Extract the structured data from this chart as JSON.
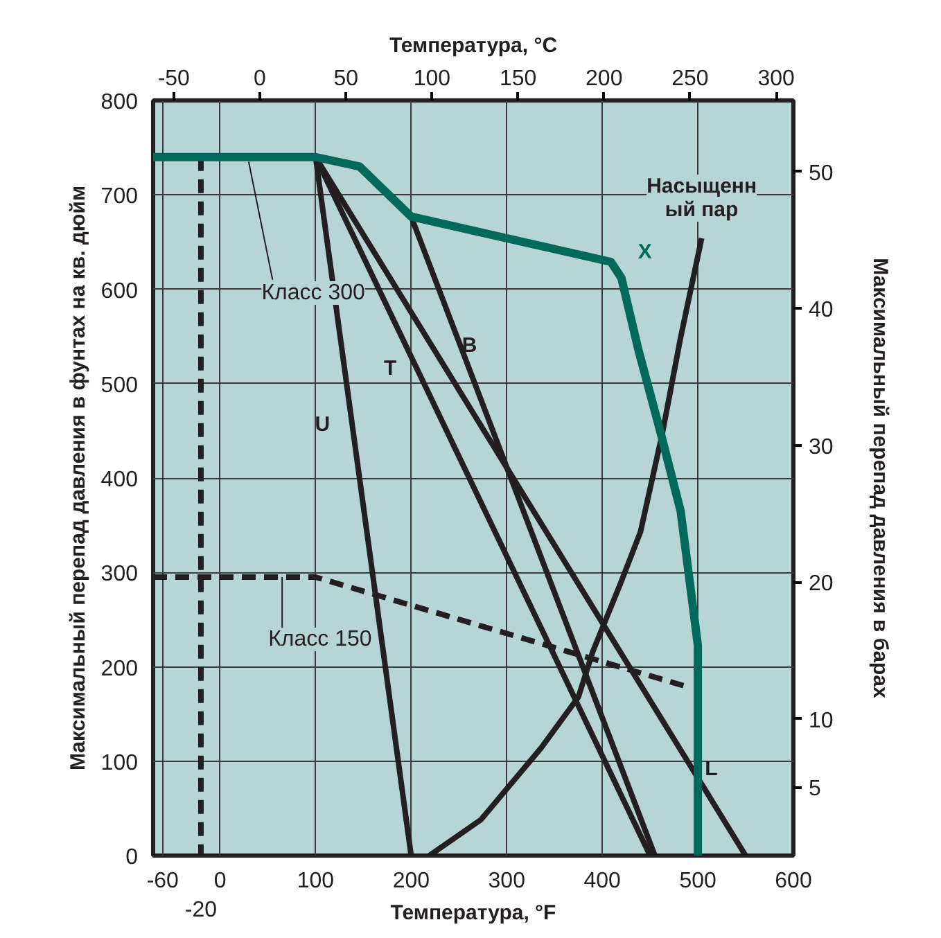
{
  "chart_data": {
    "type": "line",
    "xlabel": "Температура, °F",
    "ylabel": "Максимальный перепад давления в фунтах на кв. дюйм",
    "x2label": "Температура, °C",
    "y2label": "Максимальный перепад давления в барах",
    "xlim": [
      -70,
      600
    ],
    "xticks": [
      -60,
      0,
      100,
      200,
      300,
      400,
      500,
      600
    ],
    "ylim": [
      0,
      800
    ],
    "yticks": [
      0,
      100,
      200,
      300,
      400,
      500,
      600,
      700,
      800
    ],
    "x2lim": [
      -62,
      310
    ],
    "x2ticks": [
      -50,
      0,
      50,
      100,
      150,
      200,
      250,
      300
    ],
    "y2lim": [
      0,
      55.2
    ],
    "y2ticks": [
      5,
      10,
      20,
      30,
      40,
      50
    ],
    "grid": true,
    "legend": false,
    "marker": "none",
    "series": [
      {
        "name": "X",
        "color": "#00695c",
        "x": [
          -70,
          100,
          146,
          200,
          409,
          420,
          438,
          460,
          482,
          500,
          500
        ],
        "values": [
          740,
          740,
          730,
          677,
          629,
          612,
          535,
          452,
          365,
          223,
          0
        ]
      },
      {
        "color": "#231f20",
        "line_style": "dashed",
        "x": [
          -70,
          100,
          485
        ],
        "values": [
          295,
          295,
          180
        ]
      },
      {
        "color": "#231f20",
        "line_style": "dashed",
        "x": [
          -20,
          -20
        ],
        "values": [
          740,
          0
        ]
      },
      {
        "name": "U",
        "color": "#231f20",
        "x": [
          100,
          200
        ],
        "values": [
          740,
          0
        ]
      },
      {
        "name": "T",
        "color": "#231f20",
        "x": [
          100,
          450
        ],
        "values": [
          740,
          0
        ]
      },
      {
        "name": "B",
        "color": "#231f20",
        "x": [
          200,
          455
        ],
        "values": [
          677,
          0
        ]
      },
      {
        "name": "L",
        "color": "#231f20",
        "x": [
          100,
          550
        ],
        "values": [
          740,
          0
        ]
      },
      {
        "name": "Насыщенный пар",
        "color": "#231f20",
        "x": [
          219,
          273,
          336,
          375,
          390,
          419,
          440,
          463,
          482,
          504
        ],
        "values": [
          0,
          38,
          114,
          168,
          216,
          288,
          343,
          448,
          549,
          654
        ]
      }
    ],
    "annotations": [
      {
        "text": "Класс 300",
        "x": 30,
        "y": 740
      },
      "-20",
      {
        "text": "Класс 150",
        "x": 65,
        "y": 295
      }
    ]
  }
}
